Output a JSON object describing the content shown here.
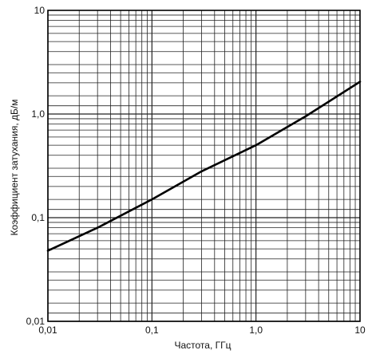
{
  "chart_data": {
    "type": "line",
    "x_scale": "log",
    "y_scale": "log",
    "xlim": [
      0.01,
      10
    ],
    "ylim": [
      0.01,
      10
    ],
    "grid": true,
    "xlabel": "Частота, ГГц",
    "ylabel": "Коэффициент затухания, дБ/м",
    "x_ticks": [
      {
        "value": 0.01,
        "label": "0,01"
      },
      {
        "value": 0.1,
        "label": "0,1"
      },
      {
        "value": 1,
        "label": "1,0"
      },
      {
        "value": 10,
        "label": "10"
      }
    ],
    "y_ticks": [
      {
        "value": 0.01,
        "label": "0,01"
      },
      {
        "value": 0.1,
        "label": "0,1"
      },
      {
        "value": 1,
        "label": "1,0"
      },
      {
        "value": 10,
        "label": "10"
      }
    ],
    "series": [
      {
        "x": [
          0.01,
          0.03,
          0.1,
          0.3,
          1,
          3,
          10
        ],
        "y": [
          0.048,
          0.08,
          0.15,
          0.28,
          0.5,
          0.95,
          2.05
        ]
      }
    ]
  }
}
